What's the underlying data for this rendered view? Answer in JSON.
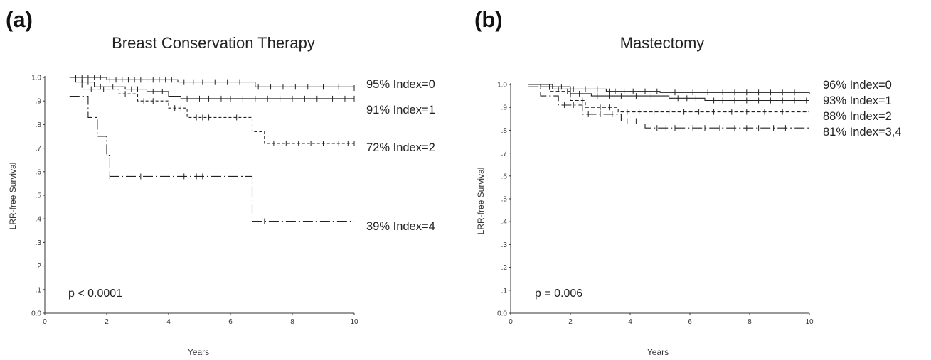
{
  "chart_data": [
    {
      "type": "line",
      "panel_label": "(a)",
      "title": "Breast Conservation Therapy",
      "xlabel": "Years",
      "ylabel": "LRR-free Survival",
      "xlim": [
        0,
        10
      ],
      "ylim": [
        0,
        1
      ],
      "x_ticks": [
        "0",
        "2",
        "4",
        "6",
        "8",
        "10"
      ],
      "y_ticks": [
        "0.0",
        ".1",
        ".2",
        ".3",
        ".4",
        ".5",
        ".6",
        ".7",
        ".8",
        ".9",
        "1.0"
      ],
      "annotation": "p < 0.0001",
      "series": [
        {
          "label": "95% Index=0",
          "dash": "solid",
          "points": [
            [
              0.8,
              1.0
            ],
            [
              2.0,
              0.99
            ],
            [
              4.3,
              0.98
            ],
            [
              6.8,
              0.96
            ],
            [
              10.0,
              0.955
            ]
          ],
          "censor": [
            1.0,
            1.2,
            1.4,
            1.6,
            1.8,
            2.1,
            2.3,
            2.5,
            2.7,
            2.9,
            3.1,
            3.3,
            3.5,
            3.7,
            3.9,
            4.1,
            4.5,
            4.8,
            5.1,
            5.5,
            5.9,
            6.3,
            6.9,
            7.3,
            7.7,
            8.1,
            8.5,
            9.0,
            9.5,
            10.0
          ]
        },
        {
          "label": "91% Index=1",
          "dash": "solid",
          "points": [
            [
              0.8,
              1.0
            ],
            [
              1.0,
              0.98
            ],
            [
              1.6,
              0.96
            ],
            [
              2.6,
              0.95
            ],
            [
              3.3,
              0.94
            ],
            [
              4.0,
              0.92
            ],
            [
              4.4,
              0.91
            ],
            [
              10.0,
              0.91
            ]
          ],
          "censor": [
            1.2,
            1.4,
            1.8,
            2.2,
            2.8,
            3.0,
            3.5,
            3.8,
            4.6,
            5.0,
            5.3,
            5.7,
            6.0,
            6.4,
            6.8,
            7.2,
            7.6,
            8.0,
            8.4,
            8.8,
            9.3,
            9.7,
            10.0
          ]
        },
        {
          "label": "72% Index=2",
          "dash": "4,3",
          "points": [
            [
              0.8,
              1.0
            ],
            [
              1.2,
              0.95
            ],
            [
              2.4,
              0.93
            ],
            [
              3.0,
              0.9
            ],
            [
              4.0,
              0.87
            ],
            [
              4.6,
              0.83
            ],
            [
              6.7,
              0.77
            ],
            [
              7.1,
              0.72
            ],
            [
              10.0,
              0.72
            ]
          ],
          "censor": [
            1.5,
            1.9,
            2.6,
            3.2,
            3.5,
            4.2,
            4.4,
            4.9,
            5.1,
            5.3,
            6.2,
            7.4,
            7.8,
            8.2,
            8.6,
            9.0,
            9.5,
            9.8,
            10.0
          ]
        },
        {
          "label": "39% Index=4",
          "dash": "14,4,2,4",
          "points": [
            [
              0.8,
              0.92
            ],
            [
              1.4,
              0.83
            ],
            [
              1.7,
              0.75
            ],
            [
              2.0,
              0.67
            ],
            [
              2.1,
              0.58
            ],
            [
              6.7,
              0.39
            ],
            [
              10.0,
              0.39
            ]
          ],
          "censor": [
            2.1,
            3.1,
            4.5,
            4.9,
            5.1,
            7.1
          ]
        }
      ]
    },
    {
      "type": "line",
      "panel_label": "(b)",
      "title": "Mastectomy",
      "xlabel": "Years",
      "ylabel": "LRR-free Survival",
      "xlim": [
        0,
        10
      ],
      "ylim": [
        0,
        1
      ],
      "x_ticks": [
        "0",
        "2",
        "4",
        "6",
        "8",
        "10"
      ],
      "y_ticks": [
        "0.0",
        ".1",
        ".2",
        ".3",
        ".4",
        ".5",
        ".6",
        ".7",
        ".8",
        ".9",
        "1.0"
      ],
      "annotation": "p = 0.006",
      "series": [
        {
          "label": "96% Index=0",
          "dash": "solid",
          "points": [
            [
              0.6,
              1.0
            ],
            [
              1.0,
              0.99
            ],
            [
              2.0,
              0.98
            ],
            [
              3.2,
              0.97
            ],
            [
              5.0,
              0.965
            ],
            [
              10.0,
              0.96
            ]
          ],
          "censor": [
            1.3,
            1.7,
            2.1,
            2.5,
            2.9,
            3.3,
            3.5,
            3.8,
            4.1,
            4.5,
            4.9,
            5.5,
            6.1,
            6.6,
            7.1,
            7.5,
            7.9,
            8.3,
            8.7,
            9.1,
            9.5
          ]
        },
        {
          "label": "93% Index=1",
          "dash": "solid",
          "points": [
            [
              0.6,
              1.0
            ],
            [
              1.4,
              0.98
            ],
            [
              2.0,
              0.96
            ],
            [
              2.7,
              0.95
            ],
            [
              5.3,
              0.94
            ],
            [
              6.5,
              0.93
            ],
            [
              10.0,
              0.93
            ]
          ],
          "censor": [
            1.6,
            2.3,
            2.9,
            3.3,
            3.7,
            4.2,
            4.7,
            5.6,
            5.9,
            6.2,
            6.8,
            7.1,
            7.5,
            7.9,
            8.3,
            8.7,
            9.1,
            9.5,
            9.9
          ]
        },
        {
          "label": "88% Index=2",
          "dash": "5,3",
          "points": [
            [
              0.6,
              1.0
            ],
            [
              1.3,
              0.97
            ],
            [
              2.0,
              0.93
            ],
            [
              2.5,
              0.9
            ],
            [
              3.6,
              0.88
            ],
            [
              10.0,
              0.88
            ]
          ],
          "censor": [
            1.9,
            2.4,
            3.0,
            3.3,
            3.9,
            4.3,
            4.8,
            5.3,
            5.8,
            6.3,
            6.8,
            7.4,
            7.9,
            8.5,
            9.1
          ]
        },
        {
          "label": "81% Index=3,4",
          "dash": "14,4,2,4",
          "points": [
            [
              0.6,
              0.99
            ],
            [
              1.0,
              0.95
            ],
            [
              1.6,
              0.91
            ],
            [
              2.4,
              0.87
            ],
            [
              3.7,
              0.84
            ],
            [
              4.5,
              0.81
            ],
            [
              10.0,
              0.81
            ]
          ],
          "censor": [
            1.8,
            2.1,
            2.6,
            3.0,
            3.4,
            3.9,
            4.2,
            4.9,
            5.2,
            5.5,
            6.1,
            6.5,
            7.0,
            7.5,
            7.9,
            8.3,
            8.8,
            9.2
          ]
        }
      ]
    }
  ]
}
